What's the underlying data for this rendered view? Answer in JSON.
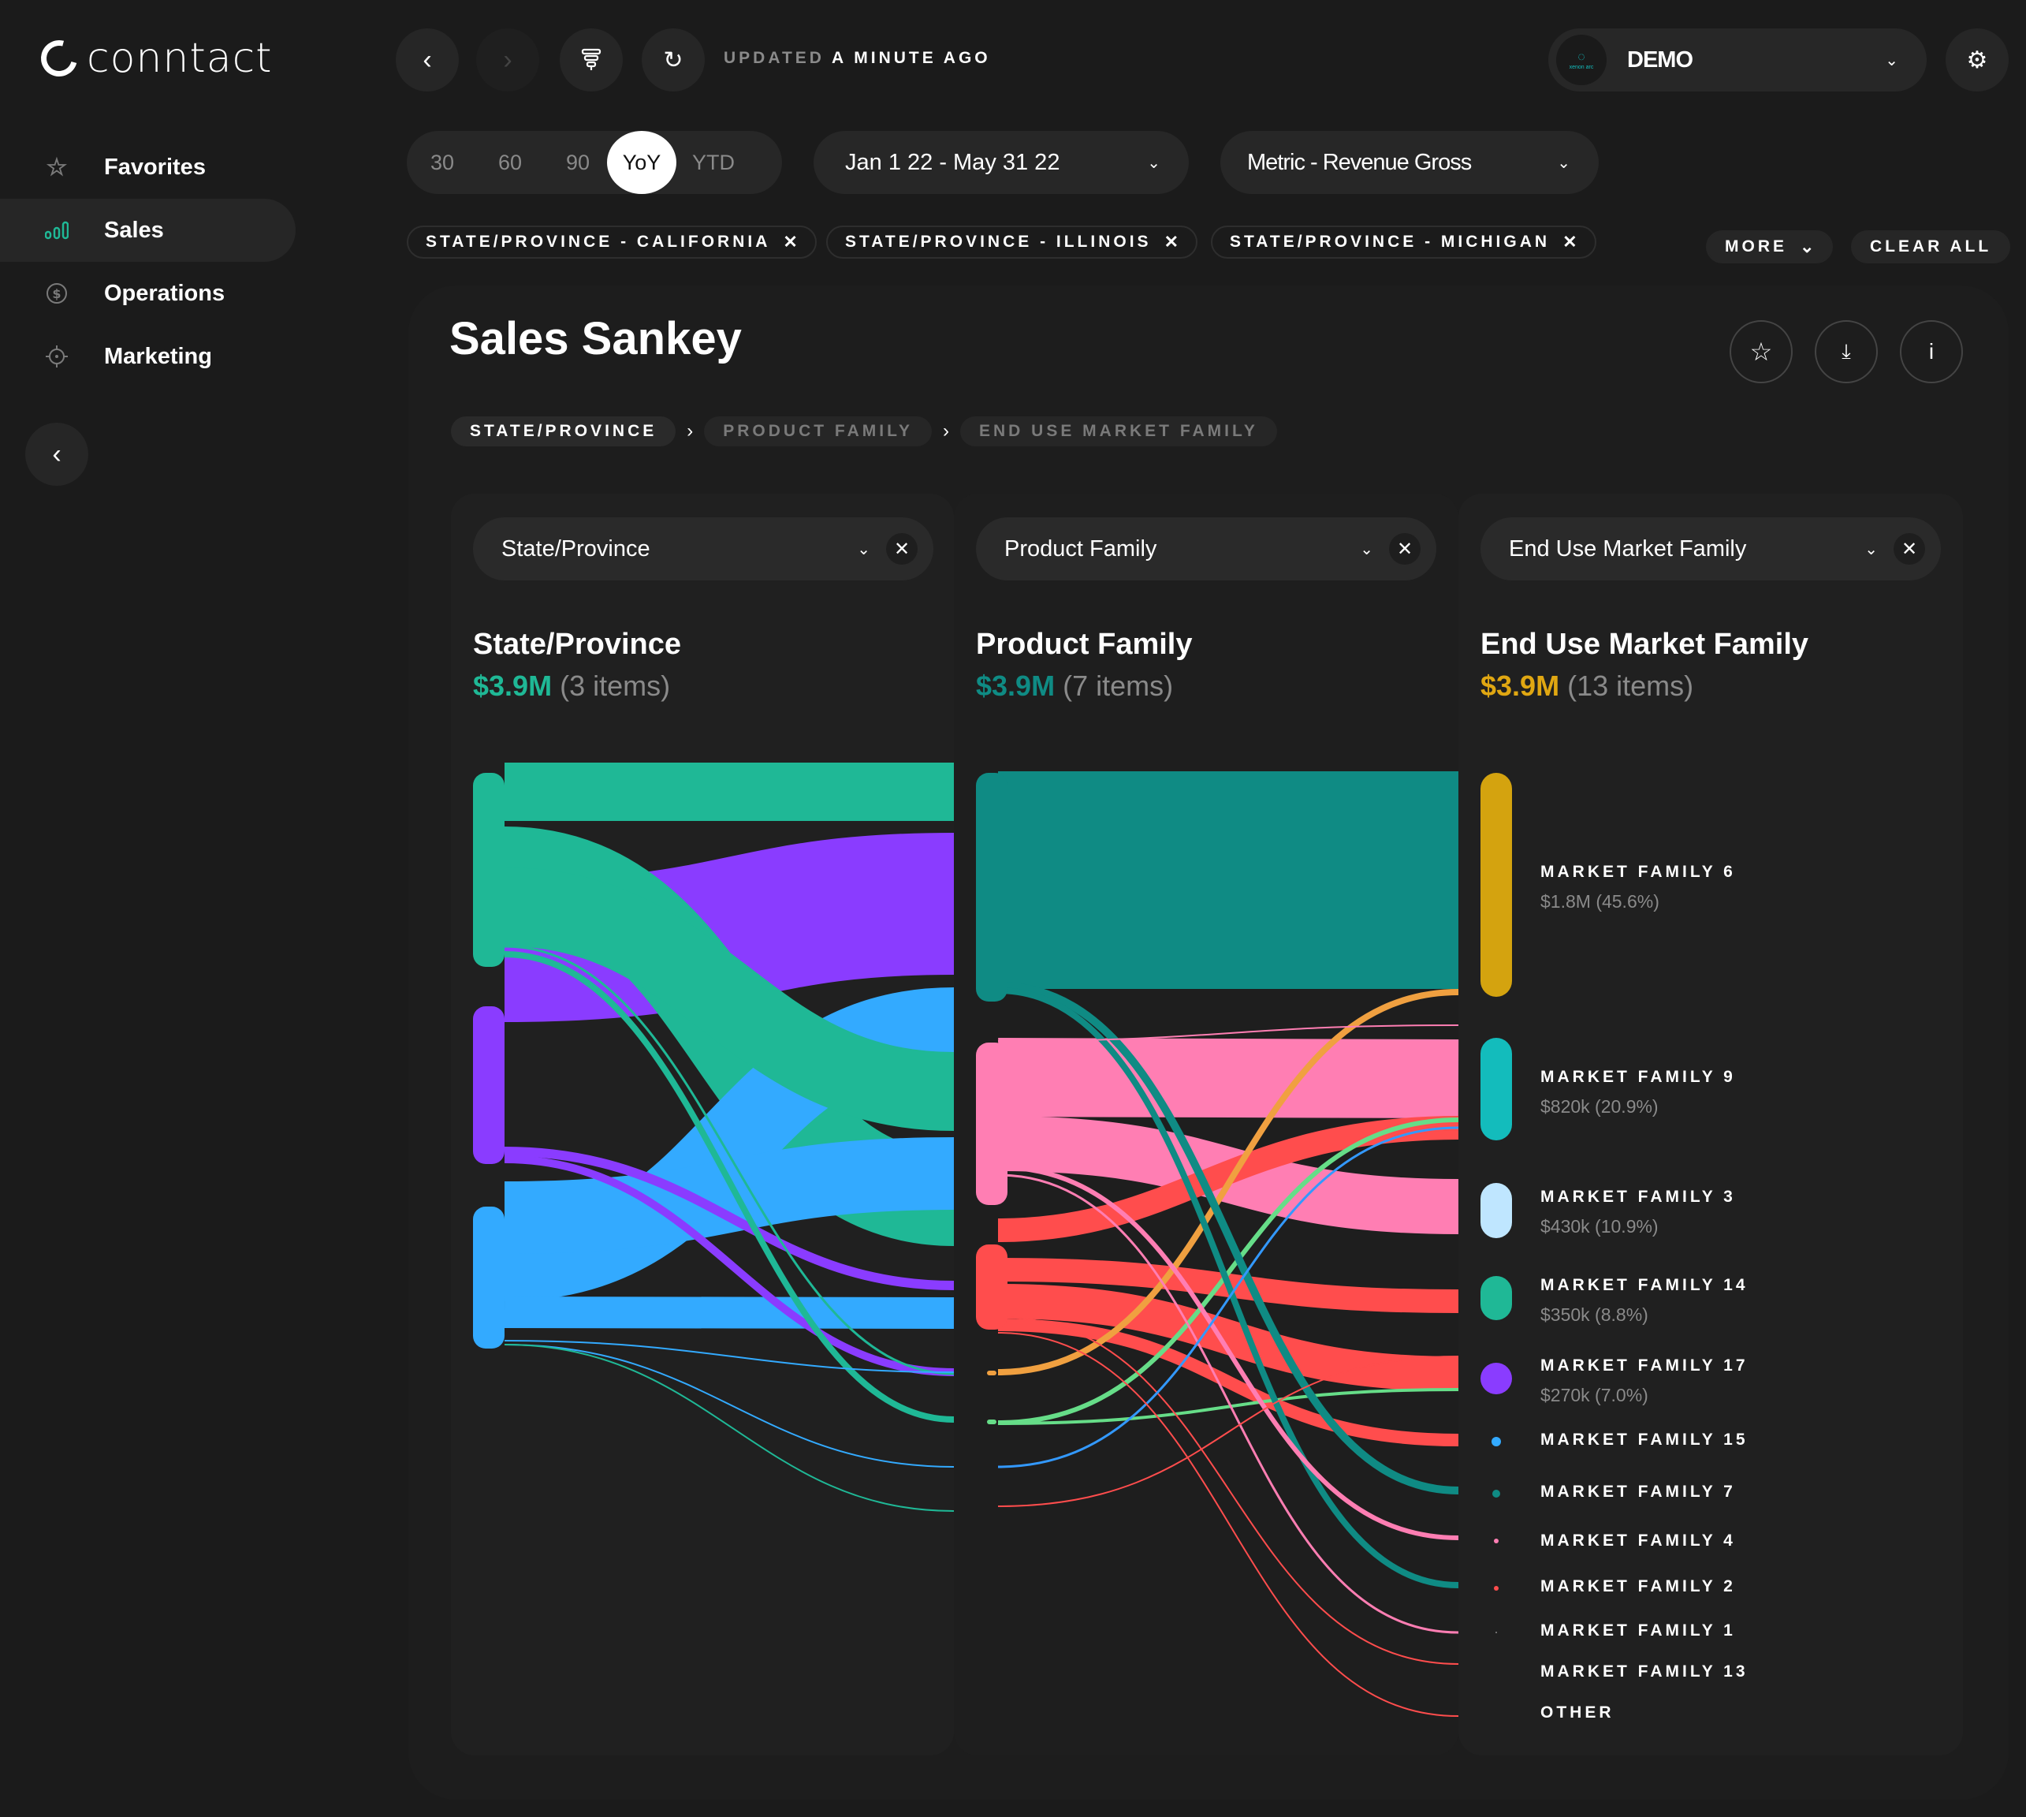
{
  "brand": {
    "name": "conntact"
  },
  "nav": [
    {
      "label": "Favorites",
      "icon": "star-icon"
    },
    {
      "label": "Sales",
      "icon": "bar-chart-icon",
      "active": true
    },
    {
      "label": "Operations",
      "icon": "dollar-circle-icon"
    },
    {
      "label": "Marketing",
      "icon": "crosshair-icon"
    }
  ],
  "topbar": {
    "updated_prefix": "UPDATED",
    "updated_suffix": "A MINUTE AGO",
    "account": "DEMO",
    "account_logo_text": "xenon arc"
  },
  "period_options": [
    "30",
    "60",
    "90",
    "YoY",
    "YTD"
  ],
  "period_selected": "YoY",
  "date_range": "Jan 1 22 - May 31 22",
  "metric": "Metric - Revenue Gross",
  "filters": [
    "STATE/PROVINCE - CALIFORNIA",
    "STATE/PROVINCE - ILLINOIS",
    "STATE/PROVINCE - MICHIGAN"
  ],
  "more_label": "MORE",
  "clear_all_label": "CLEAR ALL",
  "page_title": "Sales Sankey",
  "breadcrumb": [
    "STATE/PROVINCE",
    "PRODUCT FAMILY",
    "END USE MARKET FAMILY"
  ],
  "columns": [
    {
      "select": "State/Province",
      "title": "State/Province",
      "amount": "$3.9M",
      "items": "(3 items)",
      "amount_color": "#1fb896"
    },
    {
      "select": "Product Family",
      "title": "Product Family",
      "amount": "$3.9M",
      "items": "(7 items)",
      "amount_color": "#0f8b84"
    },
    {
      "select": "End Use Market Family",
      "title": "End Use Market Family",
      "amount": "$3.9M",
      "items": "(13 items)",
      "amount_color": "#e0a712"
    }
  ],
  "legend": [
    {
      "name": "MARKET FAMILY 6",
      "value": "$1.8M (45.6%)",
      "color": "#d4a30f"
    },
    {
      "name": "MARKET FAMILY 9",
      "value": "$820k (20.9%)",
      "color": "#13bcbc"
    },
    {
      "name": "MARKET FAMILY 3",
      "value": "$430k (10.9%)",
      "color": "#bfe6ff"
    },
    {
      "name": "MARKET FAMILY 14",
      "value": "$350k (8.8%)",
      "color": "#1fb896"
    },
    {
      "name": "MARKET FAMILY 17",
      "value": "$270k (7.0%)",
      "color": "#8a3cff"
    },
    {
      "name": "MARKET FAMILY 15",
      "value": "",
      "color": "#33aaff"
    },
    {
      "name": "MARKET FAMILY 7",
      "value": "",
      "color": "#0f8b84"
    },
    {
      "name": "MARKET FAMILY 4",
      "value": "",
      "color": "#ff7eb3"
    },
    {
      "name": "MARKET FAMILY 2",
      "value": "",
      "color": "#ff4d4d"
    },
    {
      "name": "MARKET FAMILY 1",
      "value": "",
      "color": "#888888"
    },
    {
      "name": "MARKET FAMILY 13",
      "value": "",
      "color": "#666666"
    },
    {
      "name": "OTHER",
      "value": "",
      "color": "#555555"
    }
  ]
}
